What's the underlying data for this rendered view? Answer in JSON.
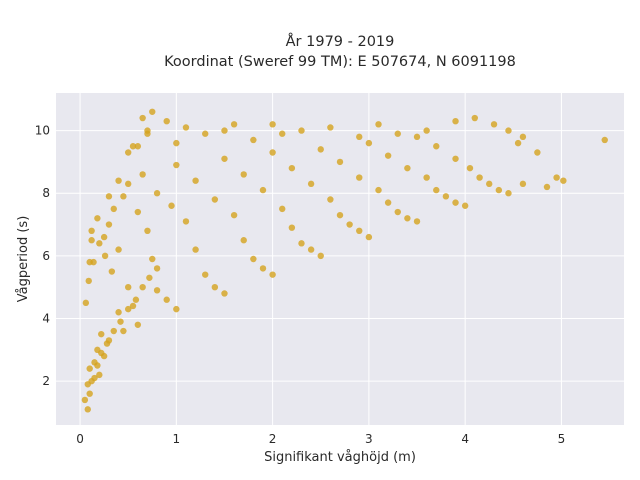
{
  "chart_data": {
    "type": "scatter",
    "title": "År 1979 - 2019",
    "subtitle": "Koordinat (Sweref 99 TM): E 507674, N 6091198",
    "xlabel": "Signifikant våghöjd (m)",
    "ylabel": "Vågperiod (s)",
    "xlim": [
      -0.25,
      5.65
    ],
    "ylim": [
      0.6,
      11.2
    ],
    "xticks": [
      0,
      1,
      2,
      3,
      4,
      5
    ],
    "yticks": [
      2,
      4,
      6,
      8,
      10
    ],
    "grid": true,
    "legend": "none",
    "colors": {
      "marker": "#d4a31e",
      "plot_background": "#e8e8ef",
      "grid": "#ffffff"
    },
    "series": [
      {
        "x": [
          0.05,
          0.08,
          0.1,
          0.12,
          0.15,
          0.18,
          0.2,
          0.22,
          0.25,
          0.3,
          0.06,
          0.09,
          0.14,
          0.2,
          0.26,
          0.33,
          0.4,
          0.45,
          0.12,
          0.18,
          0.25,
          0.3,
          0.35,
          0.4,
          0.5,
          0.55,
          0.6,
          0.45,
          0.5,
          0.6,
          0.7,
          0.75,
          0.8,
          0.9,
          1.0,
          0.65,
          0.8,
          0.95,
          1.1,
          1.2,
          1.3,
          1.4,
          1.5,
          1.0,
          1.2,
          1.4,
          1.6,
          1.7,
          1.8,
          1.9,
          2.0,
          1.5,
          1.7,
          1.9,
          2.1,
          2.2,
          2.3,
          2.4,
          2.5,
          2.0,
          2.2,
          2.4,
          2.6,
          2.7,
          2.8,
          2.9,
          3.0,
          2.5,
          2.7,
          2.9,
          3.1,
          3.2,
          3.3,
          3.4,
          3.5,
          3.0,
          3.2,
          3.4,
          3.6,
          3.7,
          3.8,
          3.9,
          4.0,
          3.5,
          3.7,
          3.9,
          4.05,
          4.15,
          4.25,
          4.35,
          4.45,
          4.55,
          4.6,
          4.75,
          4.85,
          4.95,
          5.02,
          5.45,
          0.08,
          0.1,
          0.15,
          0.18,
          0.22,
          0.28,
          0.35,
          0.42,
          0.5,
          0.58,
          0.65,
          0.72,
          0.8,
          0.6,
          0.7,
          0.65,
          0.75,
          0.9,
          1.1,
          1.3,
          1.6,
          1.8,
          2.1,
          2.3,
          2.6,
          2.9,
          3.1,
          3.3,
          3.6,
          3.9,
          4.1,
          4.3,
          4.45,
          4.6,
          0.1,
          0.12,
          0.3,
          0.4,
          0.5,
          0.55,
          0.7,
          1.0,
          1.5,
          2.0
        ],
        "y": [
          1.4,
          1.9,
          2.4,
          2.0,
          2.6,
          3.0,
          2.2,
          3.5,
          2.8,
          3.3,
          4.5,
          5.2,
          5.8,
          6.4,
          6.0,
          5.5,
          4.2,
          3.6,
          6.8,
          7.2,
          6.6,
          7.0,
          7.5,
          6.2,
          5.0,
          4.4,
          3.8,
          7.9,
          8.3,
          7.4,
          6.8,
          5.9,
          4.9,
          4.6,
          4.3,
          8.6,
          8.0,
          7.6,
          7.1,
          6.2,
          5.4,
          5.0,
          4.8,
          8.9,
          8.4,
          7.8,
          7.3,
          6.5,
          5.9,
          5.6,
          5.4,
          9.1,
          8.6,
          8.1,
          7.5,
          6.9,
          6.4,
          6.2,
          6.0,
          9.3,
          8.8,
          8.3,
          7.8,
          7.3,
          7.0,
          6.8,
          6.6,
          9.4,
          9.0,
          8.5,
          8.1,
          7.7,
          7.4,
          7.2,
          7.1,
          9.6,
          9.2,
          8.8,
          8.5,
          8.1,
          7.9,
          7.7,
          7.6,
          9.8,
          9.5,
          9.1,
          8.8,
          8.5,
          8.3,
          8.1,
          8.0,
          9.6,
          8.3,
          9.3,
          8.2,
          8.5,
          8.4,
          9.7,
          1.1,
          1.6,
          2.1,
          2.5,
          2.9,
          3.2,
          3.6,
          3.9,
          4.3,
          4.6,
          5.0,
          5.3,
          5.6,
          9.5,
          10.0,
          10.4,
          10.6,
          10.3,
          10.1,
          9.9,
          10.2,
          9.7,
          9.9,
          10.0,
          10.1,
          9.8,
          10.2,
          9.9,
          10.0,
          10.3,
          10.4,
          10.2,
          10.0,
          9.8,
          5.8,
          6.5,
          7.9,
          8.4,
          9.3,
          9.5,
          9.9,
          9.6,
          10.0,
          10.2
        ]
      }
    ]
  }
}
